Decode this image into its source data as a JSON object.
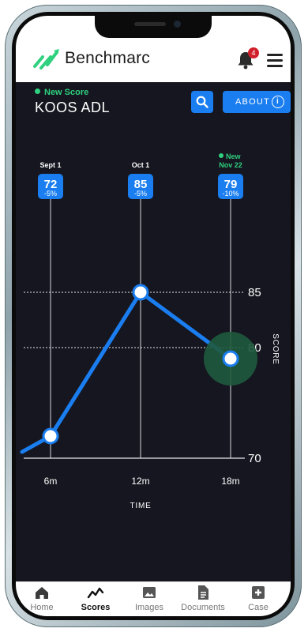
{
  "header": {
    "brand": "Benchmarc",
    "notification_count": "4"
  },
  "score_header": {
    "new_label": "New Score",
    "title": "KOOS ADL",
    "about_label": "ABOUT",
    "about_icon": "info-icon",
    "search_icon": "search-icon"
  },
  "colors": {
    "accent": "#1a7ef0",
    "new": "#2fd07e",
    "background": "#15161f",
    "line": "#1a7ef0"
  },
  "chart_data": {
    "type": "line",
    "xlabel": "TIME",
    "ylabel": "SCORE",
    "x_ticks": [
      "6m",
      "12m",
      "18m"
    ],
    "y_ticks": [
      70,
      80,
      85
    ],
    "points": [
      {
        "x": "6m",
        "date": "Sept 1",
        "value": 72,
        "change": "-5%"
      },
      {
        "x": "12m",
        "date": "Oct 1",
        "value": 85,
        "change": "-5%"
      },
      {
        "x": "18m",
        "date": "Nov 22",
        "value": 79,
        "change": "-10%",
        "is_new": true,
        "new_label": "New"
      }
    ]
  },
  "nav": {
    "items": [
      {
        "label": "Home",
        "icon": "home-icon"
      },
      {
        "label": "Scores",
        "icon": "chart-icon",
        "active": true
      },
      {
        "label": "Images",
        "icon": "image-icon"
      },
      {
        "label": "Documents",
        "icon": "document-icon"
      },
      {
        "label": "Case",
        "icon": "plus-box-icon"
      }
    ]
  }
}
